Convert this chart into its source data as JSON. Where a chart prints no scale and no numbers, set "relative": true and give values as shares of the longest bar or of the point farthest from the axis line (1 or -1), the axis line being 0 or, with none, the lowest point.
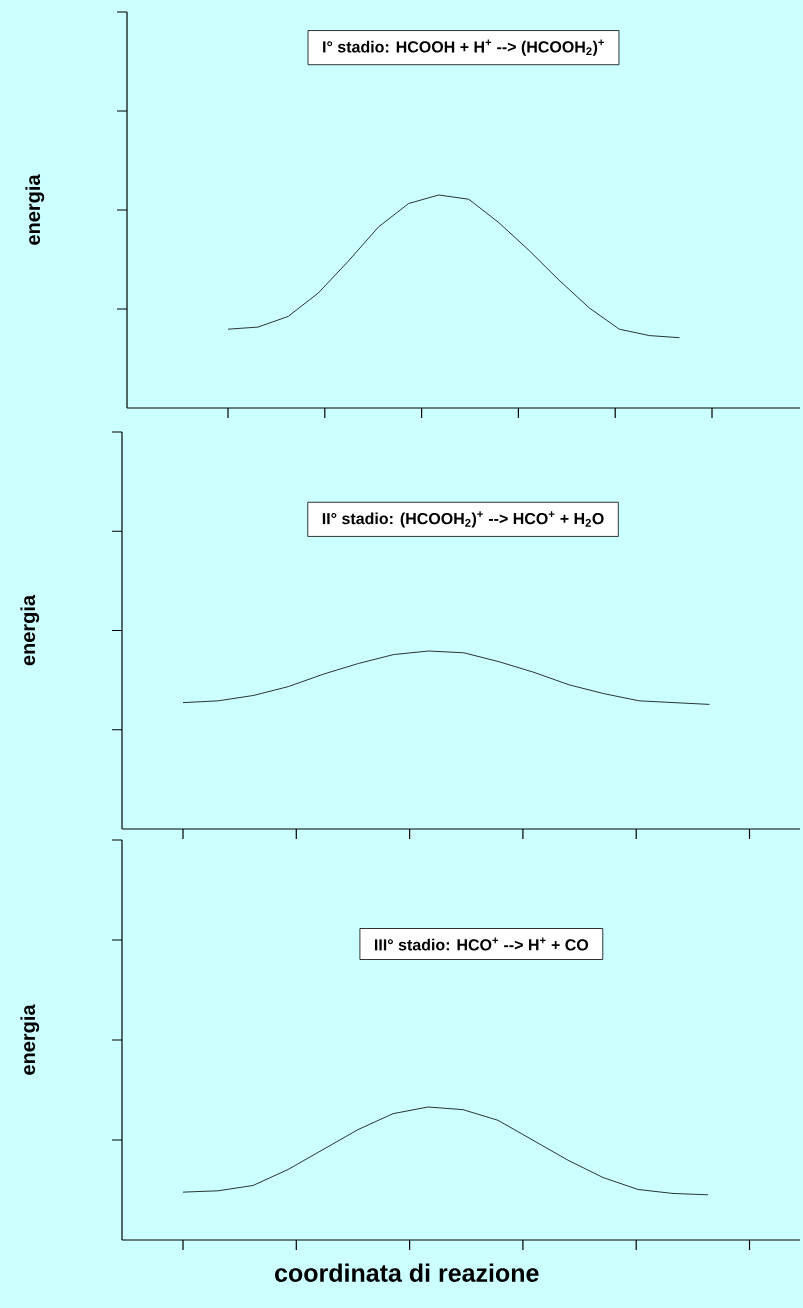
{
  "chart_data": [
    {
      "type": "line",
      "title": "I° stadio: HCOOH + H$^{+}$ --> (HCOOH$_{2}$)$^{+}$",
      "ylabel": "energia",
      "relative": true,
      "color": "#000000",
      "categories": [
        null,
        null,
        null,
        null,
        null,
        null,
        null,
        null,
        null,
        null,
        null,
        null,
        null,
        null,
        null,
        null
      ],
      "values": [
        0.37,
        0.38,
        0.43,
        0.54,
        0.69,
        0.85,
        0.96,
        1,
        0.98,
        0.87,
        0.74,
        0.6,
        0.47,
        0.37,
        0.34,
        0.33
      ]
    },
    {
      "type": "line",
      "title": "II° stadio: (HCOOH$_{2}$)$^{+}$ --> HCO$^{+}$ + H$_{2}$O",
      "ylabel": "energia",
      "relative": true,
      "color": "#000000",
      "categories": [
        null,
        null,
        null,
        null,
        null,
        null,
        null,
        null,
        null,
        null,
        null,
        null,
        null,
        null,
        null,
        null
      ],
      "values": [
        0.71,
        0.72,
        0.75,
        0.8,
        0.87,
        0.93,
        0.98,
        1,
        0.99,
        0.94,
        0.88,
        0.81,
        0.76,
        0.72,
        0.71,
        0.7
      ]
    },
    {
      "type": "line",
      "title": "III° stadio: HCO$^{+}$ --> H$^{+}$ + CO",
      "ylabel": "energia",
      "xlabel": "coordinata di reazione",
      "relative": true,
      "color": "#000000",
      "categories": [
        null,
        null,
        null,
        null,
        null,
        null,
        null,
        null,
        null,
        null,
        null,
        null,
        null,
        null,
        null,
        null
      ],
      "values": [
        0.36,
        0.37,
        0.41,
        0.53,
        0.68,
        0.83,
        0.95,
        1,
        0.98,
        0.9,
        0.75,
        0.6,
        0.47,
        0.38,
        0.35,
        0.34
      ]
    }
  ]
}
